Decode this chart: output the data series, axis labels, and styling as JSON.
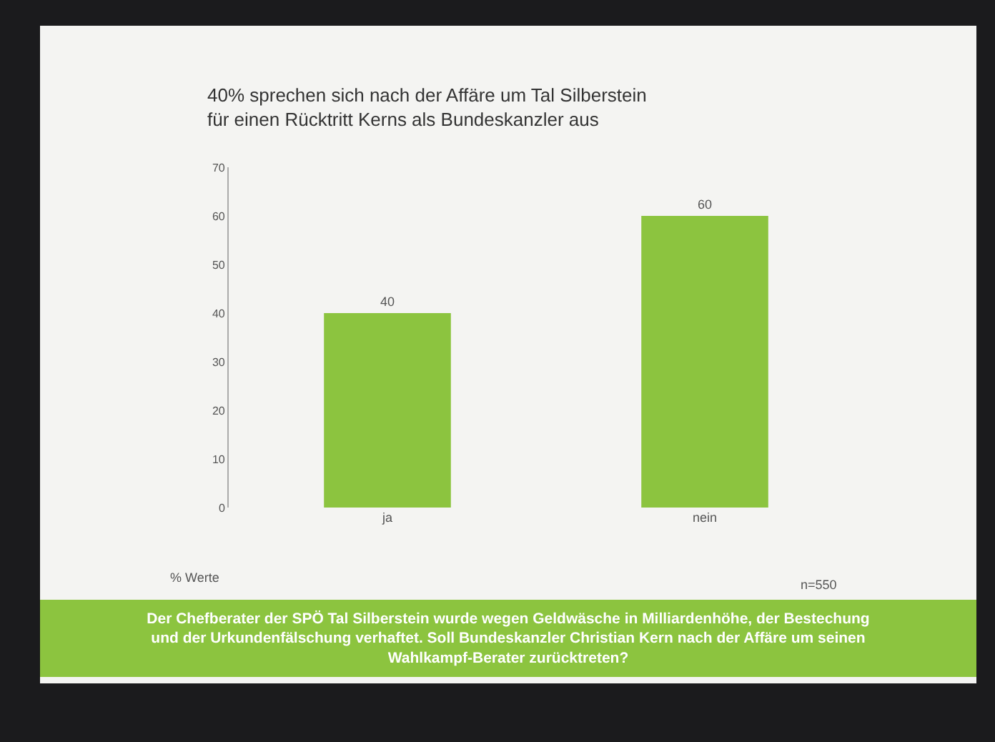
{
  "chart_data": {
    "type": "bar",
    "title": "40% sprechen sich nach der Affäre um Tal Silberstein\nfür einen Rücktritt Kerns als Bundeskanzler aus",
    "categories": [
      "ja",
      "nein"
    ],
    "values": [
      40,
      60
    ],
    "color": "#8cc43f",
    "ylim": [
      0,
      70
    ],
    "yticks": [
      0,
      10,
      20,
      30,
      40,
      50,
      60,
      70
    ],
    "data_labels": true,
    "grid": false,
    "annotations": [
      "% Werte",
      "n=550",
      "Der Chefberater der SPÖ Tal Silberstein wurde wegen Geldwäsche in Milliardenhöhe, der Bestechung\nund der Urkundenfälschung verhaftet. Soll Bundeskanzler Christian Kern nach der Affäre um seinen\nWahlkampf-Berater zurücktreten?"
    ]
  }
}
